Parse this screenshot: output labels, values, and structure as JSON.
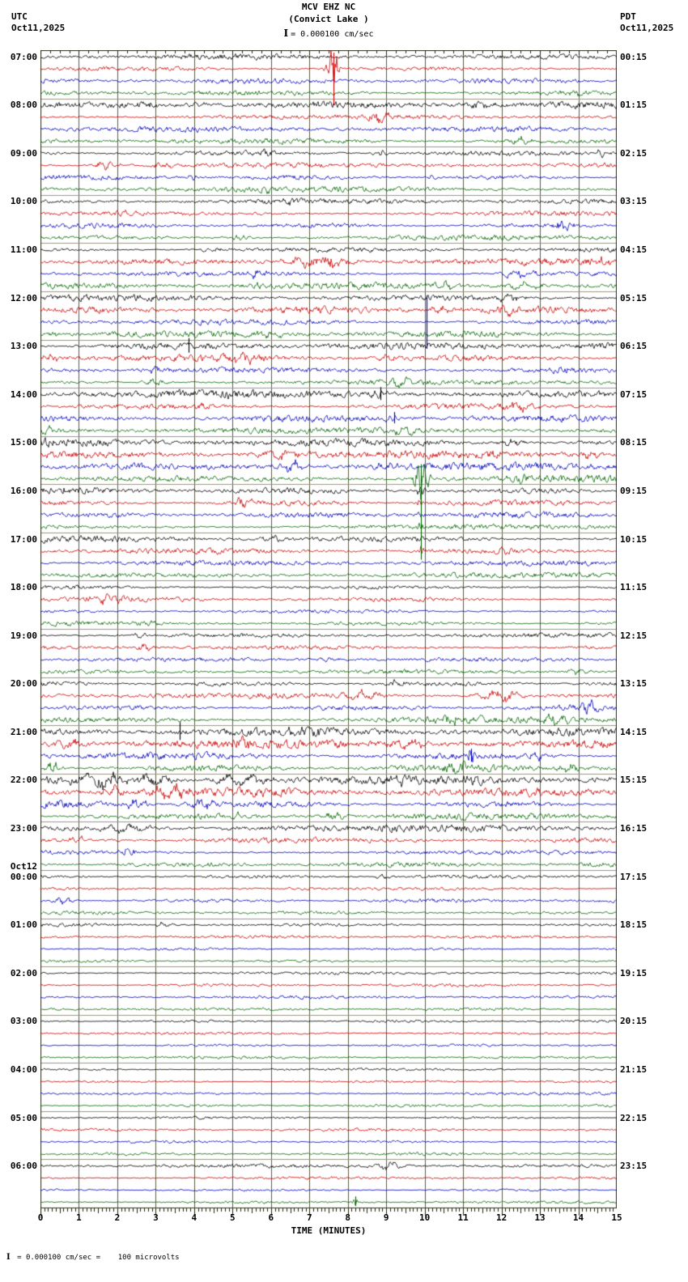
{
  "header": {
    "title": "MCV EHZ NC",
    "subtitle": "(Convict Lake )",
    "scale_label": "= 0.000100 cm/sec",
    "left_tz": "UTC",
    "left_date": "Oct11,2025",
    "right_tz": "PDT",
    "right_date": "Oct11,2025"
  },
  "footer": {
    "scale_text": " = 0.000100 cm/sec =    100 microvolts"
  },
  "axis": {
    "title": "TIME (MINUTES)",
    "tick_labels": [
      "0",
      "1",
      "2",
      "3",
      "4",
      "5",
      "6",
      "7",
      "8",
      "9",
      "10",
      "11",
      "12",
      "13",
      "14",
      "15"
    ]
  },
  "chart_data": {
    "type": "line",
    "kind": "helicorder-seismogram",
    "minutes_per_row": 15,
    "rows": 96,
    "rows_per_hour": 4,
    "trace_colors": [
      "#000000",
      "#cc0000",
      "#0000bb",
      "#006600"
    ],
    "grid_color_v": "#5c5c44",
    "grid_color_h": "#999988",
    "border_color": "#333322",
    "left_labels": [
      {
        "row": 0,
        "text": "07:00"
      },
      {
        "row": 4,
        "text": "08:00"
      },
      {
        "row": 8,
        "text": "09:00"
      },
      {
        "row": 12,
        "text": "10:00"
      },
      {
        "row": 16,
        "text": "11:00"
      },
      {
        "row": 20,
        "text": "12:00"
      },
      {
        "row": 24,
        "text": "13:00"
      },
      {
        "row": 28,
        "text": "14:00"
      },
      {
        "row": 32,
        "text": "15:00"
      },
      {
        "row": 36,
        "text": "16:00"
      },
      {
        "row": 40,
        "text": "17:00"
      },
      {
        "row": 44,
        "text": "18:00"
      },
      {
        "row": 48,
        "text": "19:00"
      },
      {
        "row": 52,
        "text": "20:00"
      },
      {
        "row": 56,
        "text": "21:00"
      },
      {
        "row": 60,
        "text": "22:00"
      },
      {
        "row": 64,
        "text": "23:00"
      },
      {
        "row": 68,
        "text": "00:00",
        "prefix": "Oct12"
      },
      {
        "row": 72,
        "text": "01:00"
      },
      {
        "row": 76,
        "text": "02:00"
      },
      {
        "row": 80,
        "text": "03:00"
      },
      {
        "row": 84,
        "text": "04:00"
      },
      {
        "row": 88,
        "text": "05:00"
      },
      {
        "row": 92,
        "text": "06:00"
      }
    ],
    "right_labels": [
      {
        "row": 0,
        "text": "00:15"
      },
      {
        "row": 4,
        "text": "01:15"
      },
      {
        "row": 8,
        "text": "02:15"
      },
      {
        "row": 12,
        "text": "03:15"
      },
      {
        "row": 16,
        "text": "04:15"
      },
      {
        "row": 20,
        "text": "05:15"
      },
      {
        "row": 24,
        "text": "06:15"
      },
      {
        "row": 28,
        "text": "07:15"
      },
      {
        "row": 32,
        "text": "08:15"
      },
      {
        "row": 36,
        "text": "09:15"
      },
      {
        "row": 40,
        "text": "10:15"
      },
      {
        "row": 44,
        "text": "11:15"
      },
      {
        "row": 48,
        "text": "12:15"
      },
      {
        "row": 52,
        "text": "13:15"
      },
      {
        "row": 56,
        "text": "14:15"
      },
      {
        "row": 60,
        "text": "15:15"
      },
      {
        "row": 64,
        "text": "16:15"
      },
      {
        "row": 68,
        "text": "17:15"
      },
      {
        "row": 72,
        "text": "18:15"
      },
      {
        "row": 76,
        "text": "19:15"
      },
      {
        "row": 80,
        "text": "20:15"
      },
      {
        "row": 84,
        "text": "21:15"
      },
      {
        "row": 88,
        "text": "22:15"
      },
      {
        "row": 92,
        "text": "23:15"
      }
    ],
    "row_noise_amp": [
      2.2,
      2.0,
      2.0,
      2.2,
      2.6,
      2.4,
      2.2,
      2.2,
      2.4,
      2.2,
      2.0,
      2.2,
      2.0,
      2.0,
      2.2,
      2.0,
      2.2,
      2.6,
      2.2,
      2.4,
      2.6,
      2.6,
      2.4,
      2.4,
      2.8,
      2.8,
      2.2,
      2.4,
      3.2,
      2.6,
      2.6,
      2.4,
      3.4,
      3.0,
      3.0,
      2.8,
      2.6,
      2.4,
      2.2,
      2.2,
      2.4,
      2.2,
      2.0,
      2.0,
      1.8,
      2.0,
      1.8,
      1.8,
      1.8,
      1.8,
      1.6,
      1.6,
      2.2,
      2.6,
      2.4,
      2.6,
      3.2,
      3.4,
      3.0,
      3.2,
      3.8,
      3.4,
      3.0,
      2.8,
      2.6,
      2.0,
      2.0,
      1.8,
      1.6,
      1.4,
      1.5,
      1.3,
      1.4,
      1.2,
      1.2,
      1.2,
      1.3,
      1.2,
      1.2,
      1.2,
      1.2,
      1.1,
      1.1,
      1.1,
      1.1,
      1.1,
      1.1,
      1.1,
      1.1,
      1.1,
      1.1,
      1.1,
      1.4,
      1.1,
      1.1,
      1.2
    ],
    "events": [
      [
        1,
        7.6,
        22,
        0.15
      ],
      [
        3,
        13.9,
        4,
        0.3
      ],
      [
        4,
        2.8,
        3,
        0.3
      ],
      [
        4,
        4.2,
        3,
        0.3
      ],
      [
        4,
        11.3,
        5,
        0.5
      ],
      [
        5,
        8.8,
        7,
        0.35
      ],
      [
        7,
        12.5,
        4,
        0.4
      ],
      [
        8,
        5.9,
        4,
        0.25
      ],
      [
        8,
        8.8,
        4,
        0.2
      ],
      [
        8,
        14.6,
        4,
        0.2
      ],
      [
        9,
        1.7,
        5,
        0.3
      ],
      [
        9,
        3.2,
        4,
        0.25
      ],
      [
        10,
        3.9,
        3,
        0.2
      ],
      [
        10,
        10.2,
        3,
        0.2
      ],
      [
        11,
        5.8,
        4,
        0.25
      ],
      [
        12,
        6.5,
        3,
        0.3
      ],
      [
        13,
        2.1,
        4,
        0.3
      ],
      [
        14,
        13.6,
        5,
        0.3
      ],
      [
        15,
        5.2,
        3,
        0.2
      ],
      [
        16,
        4.5,
        3,
        0.3
      ],
      [
        17,
        7.0,
        7,
        0.6
      ],
      [
        17,
        7.7,
        7,
        0.5
      ],
      [
        17,
        14.7,
        5,
        0.2
      ],
      [
        18,
        5.7,
        4,
        0.3
      ],
      [
        18,
        12.4,
        5,
        0.5
      ],
      [
        19,
        5.6,
        5,
        0.2
      ],
      [
        19,
        10.5,
        4,
        0.3
      ],
      [
        19,
        12.5,
        4,
        0.6
      ],
      [
        20,
        12.2,
        4,
        0.4
      ],
      [
        21,
        10.4,
        4,
        0.3
      ],
      [
        21,
        12.3,
        5,
        0.5
      ],
      [
        23,
        0.3,
        4,
        0.2
      ],
      [
        23,
        6.0,
        4,
        0.4
      ],
      [
        25,
        0.3,
        5,
        0.25
      ],
      [
        25,
        5.3,
        5,
        0.5
      ],
      [
        25,
        9.0,
        4,
        0.4
      ],
      [
        26,
        3.0,
        4,
        0.3
      ],
      [
        26,
        13.5,
        4,
        0.3
      ],
      [
        27,
        3.0,
        4,
        0.3
      ],
      [
        27,
        9.3,
        5,
        0.4
      ],
      [
        28,
        8.85,
        6,
        0.2
      ],
      [
        29,
        4.3,
        4,
        0.3
      ],
      [
        29,
        12.5,
        5,
        0.5
      ],
      [
        30,
        9.2,
        5,
        0.2
      ],
      [
        31,
        0.2,
        4,
        0.3
      ],
      [
        31,
        9.4,
        5,
        0.4
      ],
      [
        32,
        12.3,
        5,
        0.3
      ],
      [
        33,
        6.3,
        5,
        0.6
      ],
      [
        33,
        11.5,
        5,
        0.5
      ],
      [
        33,
        14.3,
        5,
        0.3
      ],
      [
        34,
        6.5,
        6,
        0.4
      ],
      [
        34,
        9.0,
        4,
        0.3
      ],
      [
        35,
        9.9,
        20,
        0.2
      ],
      [
        35,
        12.5,
        4,
        0.3
      ],
      [
        36,
        0.5,
        3,
        0.2
      ],
      [
        36,
        9.9,
        5,
        0.15
      ],
      [
        37,
        5.3,
        5,
        0.3
      ],
      [
        37,
        9.9,
        4,
        0.1
      ],
      [
        38,
        9.9,
        3,
        0.1
      ],
      [
        39,
        9.9,
        3,
        0.1
      ],
      [
        40,
        6.1,
        4,
        0.4
      ],
      [
        40,
        9.9,
        3,
        0.08
      ],
      [
        41,
        9.9,
        6,
        0.08
      ],
      [
        41,
        12.0,
        4,
        0.3
      ],
      [
        45,
        1.8,
        5,
        0.5
      ],
      [
        47,
        2.7,
        4,
        0.3
      ],
      [
        48,
        2.6,
        3,
        0.3
      ],
      [
        49,
        2.7,
        4,
        0.3
      ],
      [
        50,
        7.5,
        3,
        0.3
      ],
      [
        51,
        14.0,
        4,
        0.3
      ],
      [
        52,
        9.3,
        4,
        0.4
      ],
      [
        53,
        8.4,
        6,
        0.5
      ],
      [
        53,
        11.9,
        7,
        0.6
      ],
      [
        54,
        14.2,
        6,
        0.3
      ],
      [
        55,
        10.7,
        5,
        0.5
      ],
      [
        55,
        13.4,
        5,
        0.4
      ],
      [
        56,
        6.7,
        5,
        0.7
      ],
      [
        57,
        0.8,
        6,
        0.5
      ],
      [
        57,
        5.2,
        5,
        0.4
      ],
      [
        57,
        9.6,
        5,
        0.5
      ],
      [
        58,
        11.2,
        8,
        0.15
      ],
      [
        58,
        12.9,
        5,
        0.3
      ],
      [
        59,
        0.3,
        6,
        0.2
      ],
      [
        59,
        10.8,
        5,
        0.4
      ],
      [
        59,
        13.7,
        5,
        0.3
      ],
      [
        60,
        1.6,
        7,
        0.8
      ],
      [
        60,
        3.0,
        6,
        0.5
      ],
      [
        60,
        5.2,
        7,
        0.7
      ],
      [
        60,
        9.4,
        4,
        0.3
      ],
      [
        60,
        11.2,
        4,
        0.3
      ],
      [
        61,
        1.9,
        6,
        0.3
      ],
      [
        61,
        3.4,
        9,
        0.5
      ],
      [
        62,
        2.5,
        5,
        0.3
      ],
      [
        62,
        4.2,
        6,
        0.4
      ],
      [
        63,
        5.0,
        4,
        0.3
      ],
      [
        63,
        7.6,
        5,
        0.3
      ],
      [
        64,
        2.2,
        5,
        0.6
      ],
      [
        65,
        1.0,
        4,
        0.3
      ],
      [
        66,
        2.3,
        6,
        0.25
      ],
      [
        68,
        9.0,
        3,
        0.3
      ],
      [
        70,
        0.6,
        4,
        0.3
      ],
      [
        72,
        3.2,
        2.5,
        0.3
      ],
      [
        92,
        9.1,
        4,
        0.5
      ],
      [
        95,
        8.2,
        3,
        0.1
      ]
    ],
    "spikes": [
      [
        1,
        7.62,
        20,
        45
      ],
      [
        22,
        10.05,
        33,
        33
      ],
      [
        24,
        3.85,
        10,
        8
      ],
      [
        28,
        8.85,
        9,
        7
      ],
      [
        30,
        9.2,
        8,
        6
      ],
      [
        35,
        9.9,
        18,
        100
      ],
      [
        56,
        3.62,
        12,
        10
      ],
      [
        58,
        11.2,
        9,
        7
      ],
      [
        95,
        8.2,
        7,
        5
      ]
    ]
  }
}
